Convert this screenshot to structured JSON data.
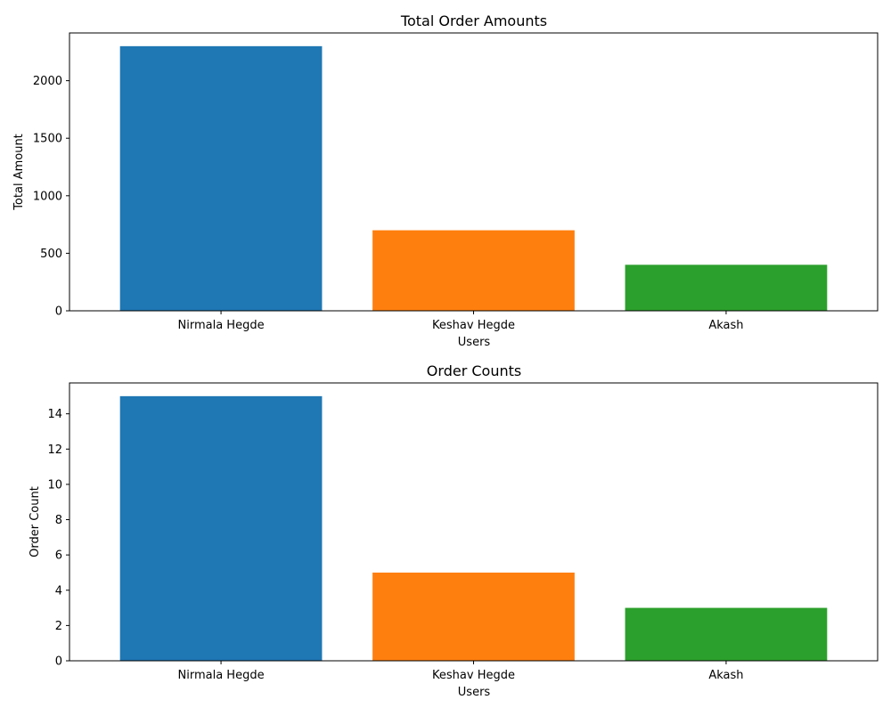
{
  "chart_data": [
    {
      "type": "bar",
      "title": "Total Order Amounts",
      "xlabel": "Users",
      "ylabel": "Total Amount",
      "categories": [
        "Nirmala Hegde",
        "Keshav Hegde",
        "Akash"
      ],
      "values": [
        2300,
        700,
        400
      ],
      "colors": [
        "#1f77b4",
        "#ff7f0e",
        "#2ca02c"
      ],
      "ylim": [
        0,
        2415
      ],
      "yticks": [
        0,
        500,
        1000,
        1500,
        2000
      ],
      "grid": false
    },
    {
      "type": "bar",
      "title": "Order Counts",
      "xlabel": "Users",
      "ylabel": "Order Count",
      "categories": [
        "Nirmala Hegde",
        "Keshav Hegde",
        "Akash"
      ],
      "values": [
        15,
        5,
        3
      ],
      "colors": [
        "#1f77b4",
        "#ff7f0e",
        "#2ca02c"
      ],
      "ylim": [
        0,
        15.75
      ],
      "yticks": [
        0,
        2,
        4,
        6,
        8,
        10,
        12,
        14
      ],
      "grid": false
    }
  ]
}
